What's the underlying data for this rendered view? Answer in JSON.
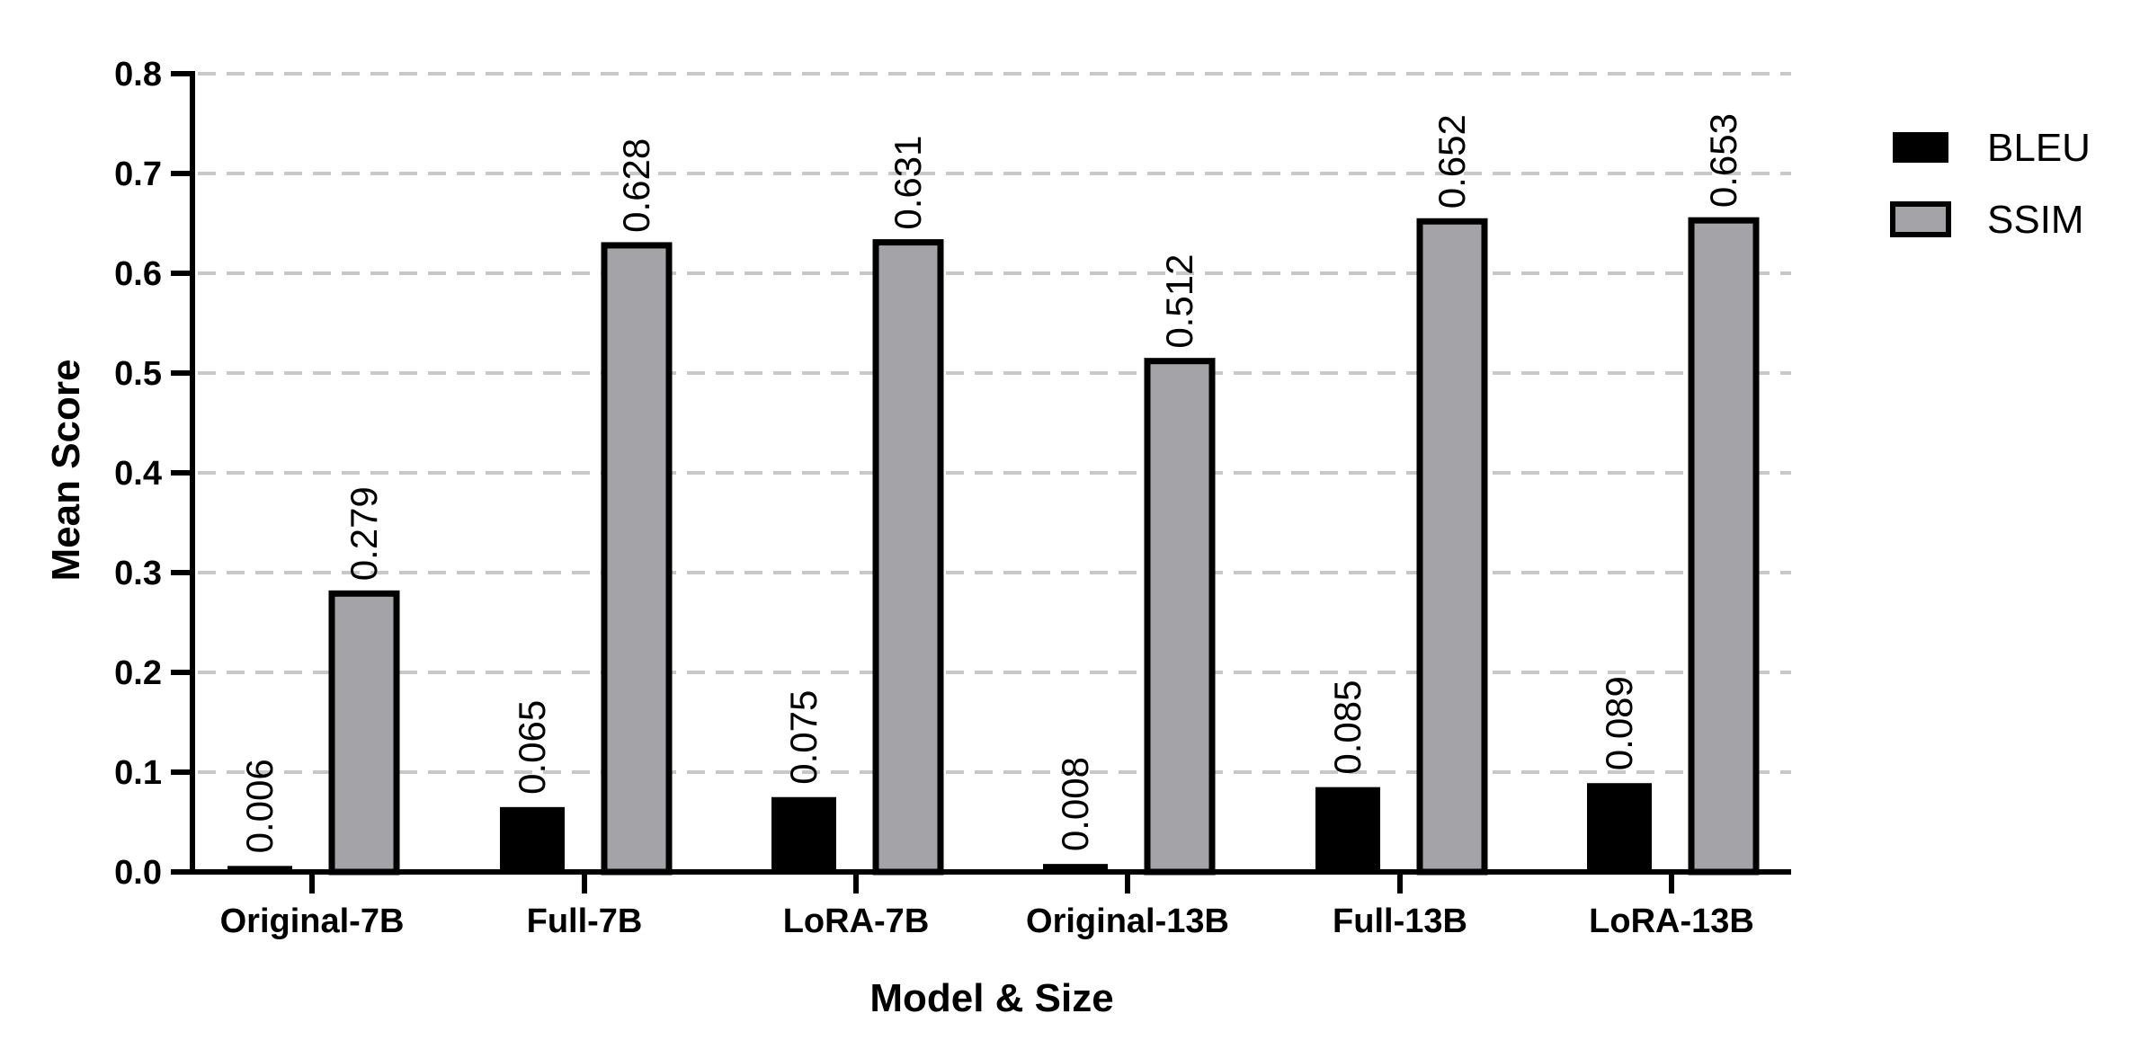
{
  "chart_data": {
    "type": "bar",
    "title": "",
    "xlabel": "Model & Size",
    "ylabel": "Mean Score",
    "ylim": [
      0,
      0.8
    ],
    "yticks": [
      "0.0",
      "0.1",
      "0.2",
      "0.3",
      "0.4",
      "0.5",
      "0.6",
      "0.7",
      "0.8"
    ],
    "grid": true,
    "legend_position": "right",
    "categories": [
      "Original-7B",
      "Full-7B",
      "LoRA-7B",
      "Original-13B",
      "Full-13B",
      "LoRA-13B"
    ],
    "series": [
      {
        "name": "BLEU",
        "color": "#000000",
        "values": [
          0.006,
          0.065,
          0.075,
          0.008,
          0.085,
          0.089
        ],
        "labels": [
          "0.006",
          "0.065",
          "0.075",
          "0.008",
          "0.085",
          "0.089"
        ]
      },
      {
        "name": "SSIM",
        "color": "#a3a3a8",
        "values": [
          0.279,
          0.628,
          0.631,
          0.512,
          0.652,
          0.653
        ],
        "labels": [
          "0.279",
          "0.628",
          "0.631",
          "0.512",
          "0.652",
          "0.653"
        ]
      }
    ]
  }
}
